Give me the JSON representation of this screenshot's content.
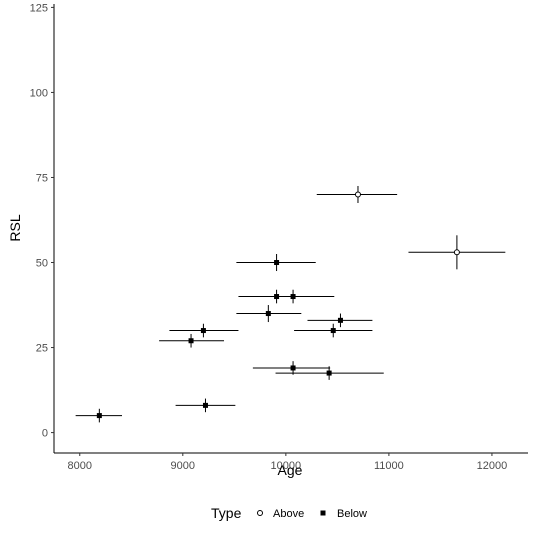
{
  "chart_data": {
    "type": "scatter",
    "xlabel": "Age",
    "ylabel": "RSL",
    "xlim": [
      7750,
      12350
    ],
    "ylim": [
      -6,
      126
    ],
    "x_ticks": [
      8000,
      9000,
      10000,
      11000,
      12000
    ],
    "y_ticks": [
      0,
      25,
      50,
      75,
      100,
      125
    ],
    "x_tick_labels": [
      "8000",
      "9000",
      "10000",
      "11000",
      "12000"
    ],
    "y_tick_labels": [
      "0",
      "25",
      "50",
      "75",
      "100",
      "125"
    ],
    "grid": false,
    "legend": {
      "title": "Type",
      "position": "bottom",
      "entries": [
        {
          "label": "Above",
          "marker": "open-circle"
        },
        {
          "label": "Below",
          "marker": "filled-square"
        }
      ]
    },
    "series": [
      {
        "name": "Above",
        "points": [
          {
            "x": 10700,
            "y": 70,
            "xerr": [
              10300,
              11080
            ],
            "yerr": [
              67.5,
              72.5
            ]
          },
          {
            "x": 11660,
            "y": 53,
            "xerr": [
              11190,
              12130
            ],
            "yerr": [
              48,
              58
            ]
          }
        ]
      },
      {
        "name": "Below",
        "points": [
          {
            "x": 8190,
            "y": 5,
            "xerr": [
              7960,
              8410
            ],
            "yerr": [
              3,
              7
            ]
          },
          {
            "x": 9220,
            "y": 8,
            "xerr": [
              8930,
              9510
            ],
            "yerr": [
              6,
              10
            ]
          },
          {
            "x": 9080,
            "y": 27,
            "xerr": [
              8770,
              9400
            ],
            "yerr": [
              25,
              29
            ]
          },
          {
            "x": 9200,
            "y": 30,
            "xerr": [
              8870,
              9540
            ],
            "yerr": [
              28,
              32
            ]
          },
          {
            "x": 9910,
            "y": 50,
            "xerr": [
              9520,
              10290
            ],
            "yerr": [
              47.5,
              52.5
            ]
          },
          {
            "x": 9910,
            "y": 40,
            "xerr": [
              9540,
              10470
            ],
            "yerr": [
              38,
              42
            ]
          },
          {
            "x": 10070,
            "y": 40,
            "xerr": [
              9970,
              10170
            ],
            "yerr": [
              38,
              42
            ]
          },
          {
            "x": 9830,
            "y": 35,
            "xerr": [
              9520,
              10150
            ],
            "yerr": [
              32.5,
              37.5
            ]
          },
          {
            "x": 10070,
            "y": 19,
            "xerr": [
              9680,
              10430
            ],
            "yerr": [
              17,
              21
            ]
          },
          {
            "x": 10420,
            "y": 17.5,
            "xerr": [
              9900,
              10950
            ],
            "yerr": [
              15.5,
              19.5
            ]
          },
          {
            "x": 10530,
            "y": 33,
            "xerr": [
              10210,
              10840
            ],
            "yerr": [
              31,
              35
            ]
          },
          {
            "x": 10460,
            "y": 30,
            "xerr": [
              10080,
              10840
            ],
            "yerr": [
              28,
              32
            ]
          }
        ]
      }
    ]
  }
}
